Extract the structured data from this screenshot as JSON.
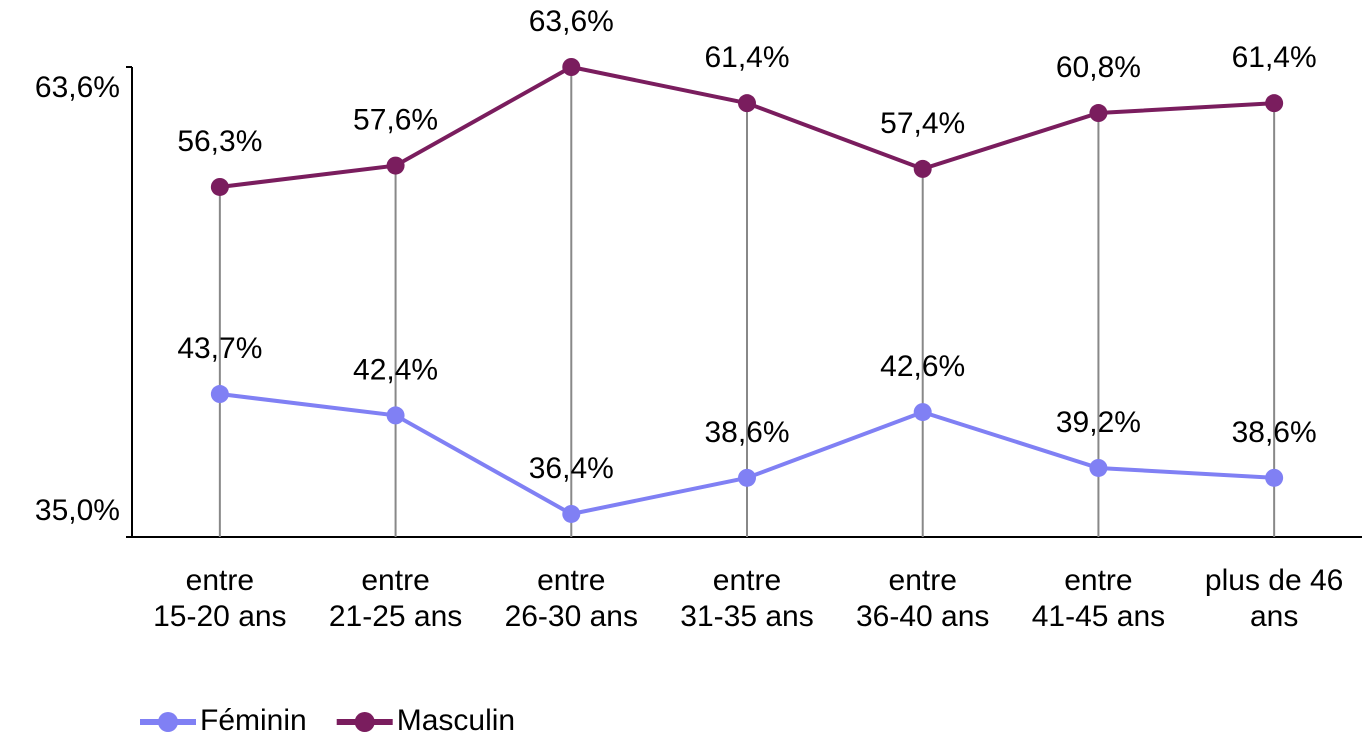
{
  "chart_data": {
    "type": "line",
    "categories": [
      "entre\n15-20 ans",
      "entre\n21-25 ans",
      "entre\n26-30 ans",
      "entre\n31-35 ans",
      "entre\n36-40 ans",
      "entre\n41-45 ans",
      "plus de 46\nans"
    ],
    "series": [
      {
        "name": "Féminin",
        "color": "#8080f4",
        "values": [
          43.7,
          42.4,
          36.4,
          38.6,
          42.6,
          39.2,
          38.6
        ],
        "value_labels": [
          "43,7%",
          "42,4%",
          "36,4%",
          "38,6%",
          "42,6%",
          "39,2%",
          "38,6%"
        ]
      },
      {
        "name": "Masculin",
        "color": "#7a1d5e",
        "values": [
          56.3,
          57.6,
          63.6,
          61.4,
          57.4,
          60.8,
          61.4
        ],
        "value_labels": [
          "56,3%",
          "57,6%",
          "63,6%",
          "61,4%",
          "57,4%",
          "60,8%",
          "61,4%"
        ]
      }
    ],
    "ylim": [
      35.0,
      63.6
    ],
    "yticks": [
      {
        "value": 35.0,
        "label": "35,0%"
      },
      {
        "value": 63.6,
        "label": "63,6%"
      }
    ],
    "drop_lines": true,
    "legend": "bottom-left"
  }
}
